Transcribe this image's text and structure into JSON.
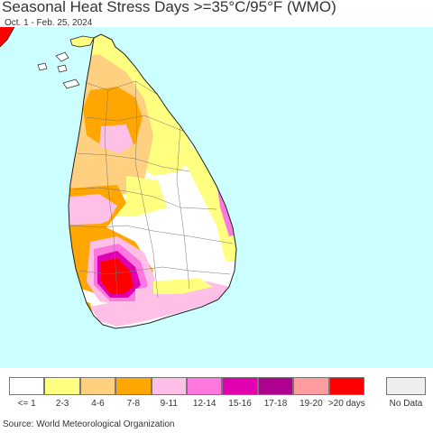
{
  "title": "Seasonal Heat Stress Days >=35°C/95°F (WMO)",
  "subtitle": "Oct. 1 - Feb. 25, 2024",
  "source": "Source: World Meteorological Organization",
  "colors": {
    "sea": "#ccffff",
    "land_none": "#ffffff",
    "c2_3": "#ffff80",
    "c4_6": "#ffd080",
    "c7_8": "#ffa600",
    "c9_11": "#ffc0e8",
    "c12_14": "#ff78e0",
    "c15_16": "#e000b0",
    "c17_18": "#b00090",
    "c19_20": "#ff9ca0",
    "c20p": "#ff0000",
    "nodata": "#eeeeee"
  },
  "legend": [
    {
      "label": "<= 1",
      "color": "#ffffff"
    },
    {
      "label": "2-3",
      "color": "#ffff80"
    },
    {
      "label": "4-6",
      "color": "#ffd080"
    },
    {
      "label": "7-8",
      "color": "#ffa600"
    },
    {
      "label": "9-11",
      "color": "#ffc0e8"
    },
    {
      "label": "12-14",
      "color": "#ff78e0"
    },
    {
      "label": "15-16",
      "color": "#e000b0"
    },
    {
      "label": "17-18",
      "color": "#b00090"
    },
    {
      "label": "19-20",
      "color": "#ff9ca0"
    },
    {
      "label": ">20 days",
      "color": "#ff0000"
    },
    {
      "label": "No Data",
      "color": "#eeeeee"
    }
  ]
}
